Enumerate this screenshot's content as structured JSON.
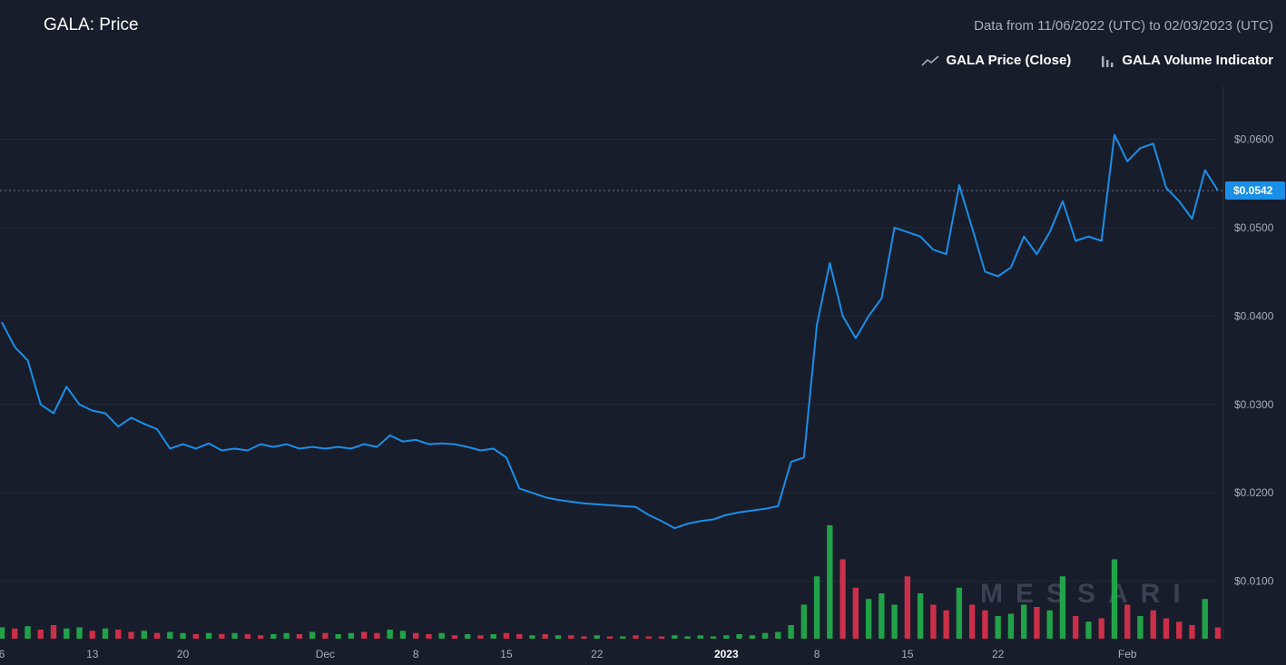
{
  "header": {
    "title": "GALA: Price",
    "date_range": "Data from 11/06/2022 (UTC) to 02/03/2023 (UTC)"
  },
  "legend": {
    "price_label": "GALA Price (Close)",
    "volume_label": "GALA Volume Indicator",
    "price_icon": "line-chart-icon",
    "volume_icon": "bar-chart-icon"
  },
  "watermark": "MESSARI",
  "colors": {
    "background": "#181d2b",
    "price_line": "#1a8fe8",
    "volume_up": "#22b14c",
    "volume_down": "#e0324c",
    "last_price_badge": "#1a8fe8"
  },
  "chart_data": {
    "type": "line",
    "title": "GALA: Price",
    "ylim": [
      0.0034,
      0.066
    ],
    "y_ticks": [
      "$0.0100",
      "$0.0200",
      "$0.0300",
      "$0.0400",
      "$0.0500",
      "$0.0600"
    ],
    "y_tick_values": [
      0.01,
      0.02,
      0.03,
      0.04,
      0.05,
      0.06
    ],
    "x_ticks": [
      {
        "label": "6",
        "index": 0
      },
      {
        "label": "13",
        "index": 7
      },
      {
        "label": "20",
        "index": 14
      },
      {
        "label": "Dec",
        "index": 25
      },
      {
        "label": "8",
        "index": 32
      },
      {
        "label": "15",
        "index": 39
      },
      {
        "label": "22",
        "index": 46
      },
      {
        "label": "2023",
        "index": 56,
        "bold": true
      },
      {
        "label": "8",
        "index": 63
      },
      {
        "label": "15",
        "index": 70
      },
      {
        "label": "22",
        "index": 77
      },
      {
        "label": "Feb",
        "index": 87
      }
    ],
    "last_price": {
      "value": 0.0542,
      "label": "$0.0542"
    },
    "series": [
      {
        "name": "GALA Price (Close)",
        "values": [
          0.0393,
          0.0365,
          0.035,
          0.03,
          0.029,
          0.032,
          0.03,
          0.0293,
          0.029,
          0.0275,
          0.0285,
          0.0278,
          0.0272,
          0.025,
          0.0255,
          0.025,
          0.0256,
          0.0248,
          0.025,
          0.0248,
          0.0255,
          0.0252,
          0.0255,
          0.025,
          0.0252,
          0.025,
          0.0252,
          0.025,
          0.0255,
          0.0252,
          0.0265,
          0.0258,
          0.026,
          0.0255,
          0.0256,
          0.0255,
          0.0252,
          0.0248,
          0.025,
          0.024,
          0.0205,
          0.02,
          0.0195,
          0.0192,
          0.019,
          0.0188,
          0.0187,
          0.0186,
          0.0185,
          0.0184,
          0.0175,
          0.0168,
          0.016,
          0.0165,
          0.0168,
          0.017,
          0.0175,
          0.0178,
          0.018,
          0.0182,
          0.0185,
          0.0235,
          0.024,
          0.039,
          0.046,
          0.04,
          0.0375,
          0.04,
          0.042,
          0.05,
          0.0495,
          0.049,
          0.0475,
          0.047,
          0.0548,
          0.05,
          0.045,
          0.0445,
          0.0455,
          0.049,
          0.047,
          0.0495,
          0.053,
          0.0485,
          0.049,
          0.0485,
          0.0605,
          0.0575,
          0.059,
          0.0595,
          0.0545,
          0.053,
          0.051,
          0.0565,
          0.0542
        ]
      },
      {
        "name": "GALA Volume Indicator",
        "volume_values": [
          0.1,
          0.09,
          0.11,
          0.08,
          0.12,
          0.09,
          0.1,
          0.07,
          0.09,
          0.08,
          0.06,
          0.07,
          0.05,
          0.06,
          0.05,
          0.04,
          0.05,
          0.04,
          0.05,
          0.04,
          0.03,
          0.04,
          0.05,
          0.04,
          0.06,
          0.05,
          0.04,
          0.05,
          0.06,
          0.05,
          0.08,
          0.07,
          0.05,
          0.04,
          0.05,
          0.03,
          0.04,
          0.03,
          0.04,
          0.05,
          0.04,
          0.03,
          0.04,
          0.03,
          0.03,
          0.02,
          0.03,
          0.02,
          0.02,
          0.03,
          0.02,
          0.02,
          0.03,
          0.02,
          0.03,
          0.02,
          0.03,
          0.04,
          0.03,
          0.05,
          0.06,
          0.12,
          0.3,
          0.55,
          1.0,
          0.7,
          0.45,
          0.35,
          0.4,
          0.3,
          0.55,
          0.4,
          0.3,
          0.25,
          0.45,
          0.3,
          0.25,
          0.2,
          0.22,
          0.3,
          0.28,
          0.25,
          0.55,
          0.2,
          0.15,
          0.18,
          0.7,
          0.3,
          0.2,
          0.25,
          0.18,
          0.15,
          0.12,
          0.35,
          0.1
        ],
        "volume_up": [
          true,
          false,
          true,
          false,
          false,
          true,
          true,
          false,
          true,
          false,
          false,
          true,
          false,
          true,
          true,
          false,
          true,
          false,
          true,
          false,
          false,
          true,
          true,
          false,
          true,
          false,
          true,
          true,
          false,
          false,
          true,
          true,
          false,
          false,
          true,
          false,
          true,
          false,
          true,
          false,
          false,
          true,
          false,
          true,
          false,
          false,
          true,
          false,
          true,
          false,
          false,
          false,
          true,
          true,
          true,
          true,
          true,
          true,
          true,
          true,
          true,
          true,
          true,
          true,
          true,
          false,
          false,
          true,
          true,
          true,
          false,
          true,
          false,
          false,
          true,
          false,
          false,
          true,
          true,
          true,
          false,
          true,
          true,
          false,
          true,
          false,
          true,
          false,
          true,
          false,
          false,
          false,
          false,
          true,
          false
        ]
      }
    ]
  }
}
